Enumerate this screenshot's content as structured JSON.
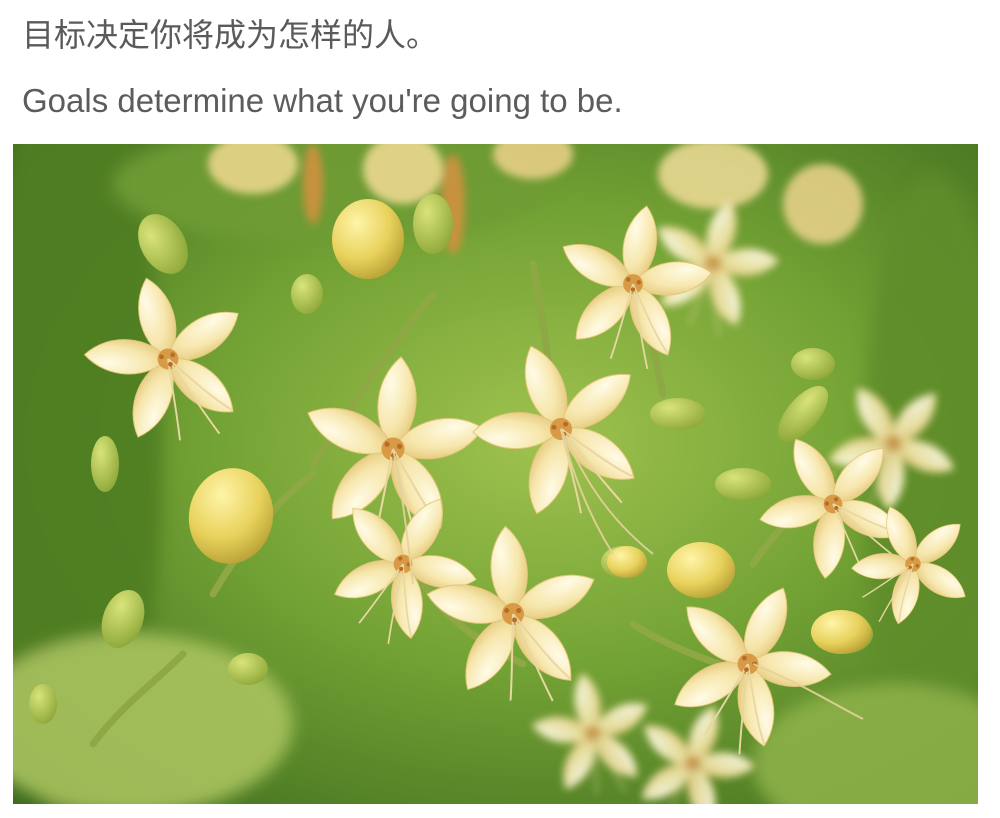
{
  "quote": {
    "chinese": "目标决定你将成为怎样的人。",
    "english": "Goals determine what you're going to be."
  },
  "photo": {
    "subject": "pale-yellow-blossom-cluster",
    "colors": {
      "background_dark": "#3f6d1f",
      "background_mid": "#7aa83a",
      "background_light": "#b6cf6a",
      "petal": "#f8e8b0",
      "petal_shade": "#e8cf85",
      "bud": "#e9d463",
      "stamen": "#c98a3a",
      "stem": "#8fae45"
    }
  }
}
